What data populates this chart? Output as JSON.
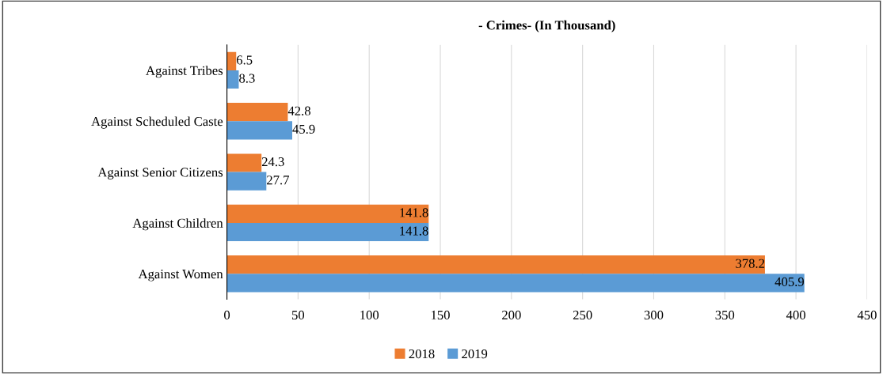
{
  "chart_data": {
    "type": "bar",
    "orientation": "horizontal",
    "title": "- Crimes- (In Thousand)",
    "categories": [
      "Against Tribes",
      "Against Scheduled Caste",
      "Against Senior Citizens",
      "Against Children",
      "Against Women"
    ],
    "series": [
      {
        "name": "2018",
        "color": "#ed7d31",
        "values": [
          6.5,
          42.8,
          24.3,
          141.8,
          378.2
        ]
      },
      {
        "name": "2019",
        "color": "#5b9bd5",
        "values": [
          8.3,
          45.9,
          27.7,
          141.8,
          405.9
        ]
      }
    ],
    "xlim": [
      0,
      450
    ],
    "xticks": [
      0,
      50,
      100,
      150,
      200,
      250,
      300,
      350,
      400,
      450
    ],
    "grid": "x",
    "legend": "bottom",
    "data_labels": true
  }
}
